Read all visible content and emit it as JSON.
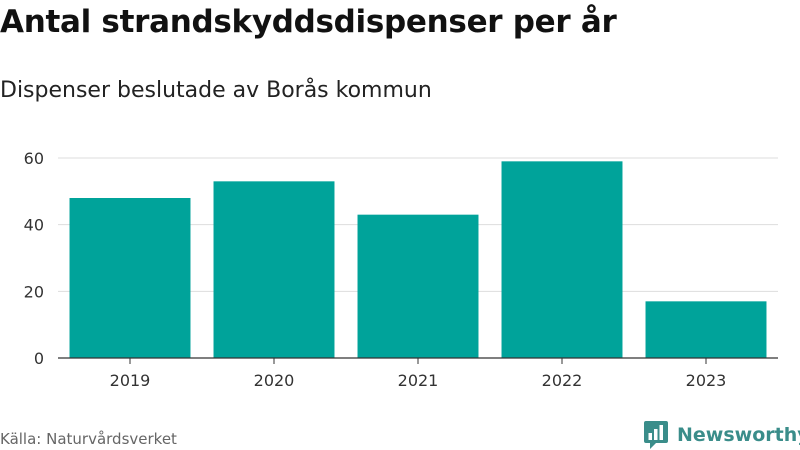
{
  "title": "Antal strandskyddsdispenser per år",
  "subtitle": "Dispenser beslutade av Borås kommun",
  "source": "Källa: Naturvårdsverket",
  "brand": {
    "name": "Newsworthy",
    "logo_icon": "newsworthy-logo-icon",
    "color": "#3a8d8a"
  },
  "colors": {
    "bar": "#00a39a",
    "grid": "#dddddd",
    "axis": "#333333"
  },
  "chart_data": {
    "type": "bar",
    "title": "Antal strandskyddsdispenser per år",
    "subtitle": "Dispenser beslutade av Borås kommun",
    "categories": [
      "2019",
      "2020",
      "2021",
      "2022",
      "2023"
    ],
    "values": [
      48,
      53,
      43,
      59,
      17
    ],
    "ylim": [
      0,
      60
    ],
    "yticks": [
      0,
      20,
      40,
      60
    ],
    "xlabel": "",
    "ylabel": "",
    "grid": true,
    "legend": "none"
  }
}
